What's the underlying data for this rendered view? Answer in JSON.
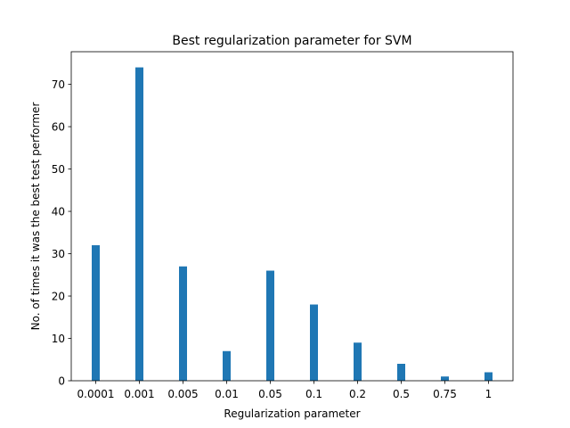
{
  "chart_data": {
    "type": "bar",
    "title": "Best regularization parameter for SVM",
    "xlabel": "Regularization parameter",
    "ylabel": "No. of times it was the best test performer",
    "categories": [
      "0.0001",
      "0.001",
      "0.005",
      "0.01",
      "0.05",
      "0.1",
      "0.2",
      "0.5",
      "0.75",
      "1"
    ],
    "values": [
      32,
      74,
      27,
      7,
      26,
      18,
      9,
      4,
      1,
      2
    ],
    "ylim": [
      0,
      77.7
    ],
    "yticks": [
      0,
      10,
      20,
      30,
      40,
      50,
      60,
      70
    ],
    "bar_color": "#1f77b4",
    "grid": false,
    "legend": false
  }
}
